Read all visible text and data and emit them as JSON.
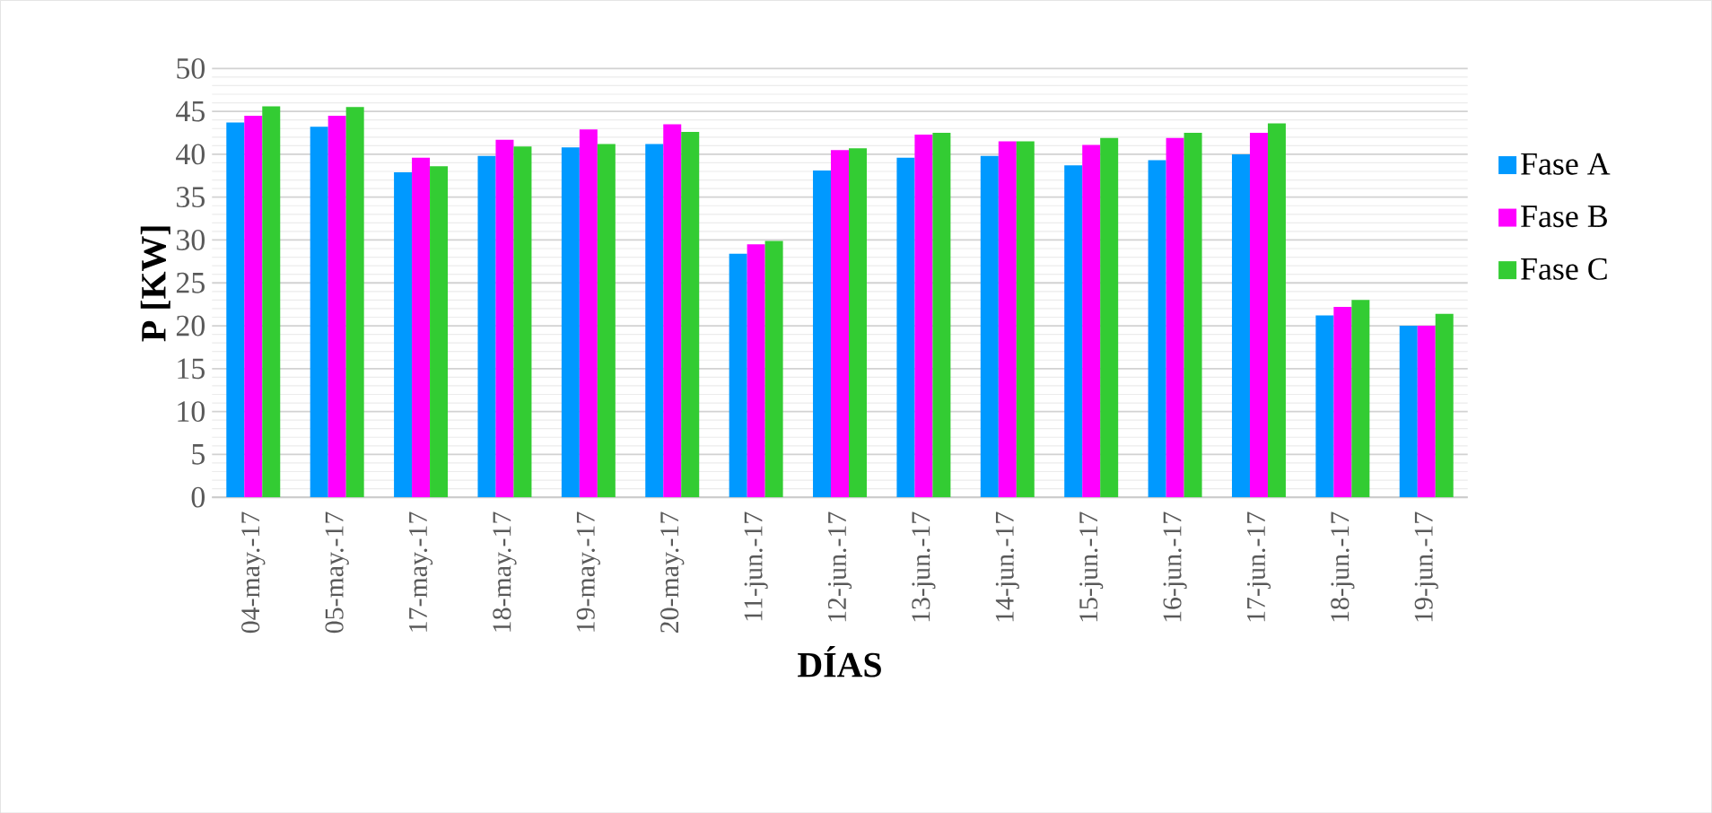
{
  "chart_data": {
    "type": "bar",
    "xlabel": "DÍAS",
    "ylabel": "P [KW]",
    "categories": [
      "04-may.-17",
      "05-may.-17",
      "17-may.-17",
      "18-may.-17",
      "19-may.-17",
      "20-may.-17",
      "11-jun.-17",
      "12-jun.-17",
      "13-jun.-17",
      "14-jun.-17",
      "15-jun.-17",
      "16-jun.-17",
      "17-jun.-17",
      "18-jun.-17",
      "19-jun.-17"
    ],
    "series": [
      {
        "name": "Fase A",
        "color": "#0099ff",
        "values": [
          43.7,
          43.2,
          37.9,
          39.8,
          40.8,
          41.2,
          28.4,
          38.1,
          39.6,
          39.8,
          38.7,
          39.3,
          40.0,
          21.2,
          20.0
        ]
      },
      {
        "name": "Fase B",
        "color": "#ff00ff",
        "values": [
          44.5,
          44.5,
          39.6,
          41.7,
          42.9,
          43.5,
          29.5,
          40.5,
          42.3,
          41.5,
          41.1,
          41.9,
          42.5,
          22.2,
          20.0
        ]
      },
      {
        "name": "Fase C",
        "color": "#33cc33",
        "values": [
          45.6,
          45.5,
          38.6,
          40.9,
          41.2,
          42.6,
          29.9,
          40.7,
          42.5,
          41.5,
          41.9,
          42.5,
          43.6,
          23.0,
          21.4
        ]
      }
    ],
    "ylim": [
      0,
      50
    ],
    "yticks": [
      0,
      5,
      10,
      15,
      20,
      25,
      30,
      35,
      40,
      45,
      50
    ],
    "grid": "y",
    "legend": "right"
  }
}
